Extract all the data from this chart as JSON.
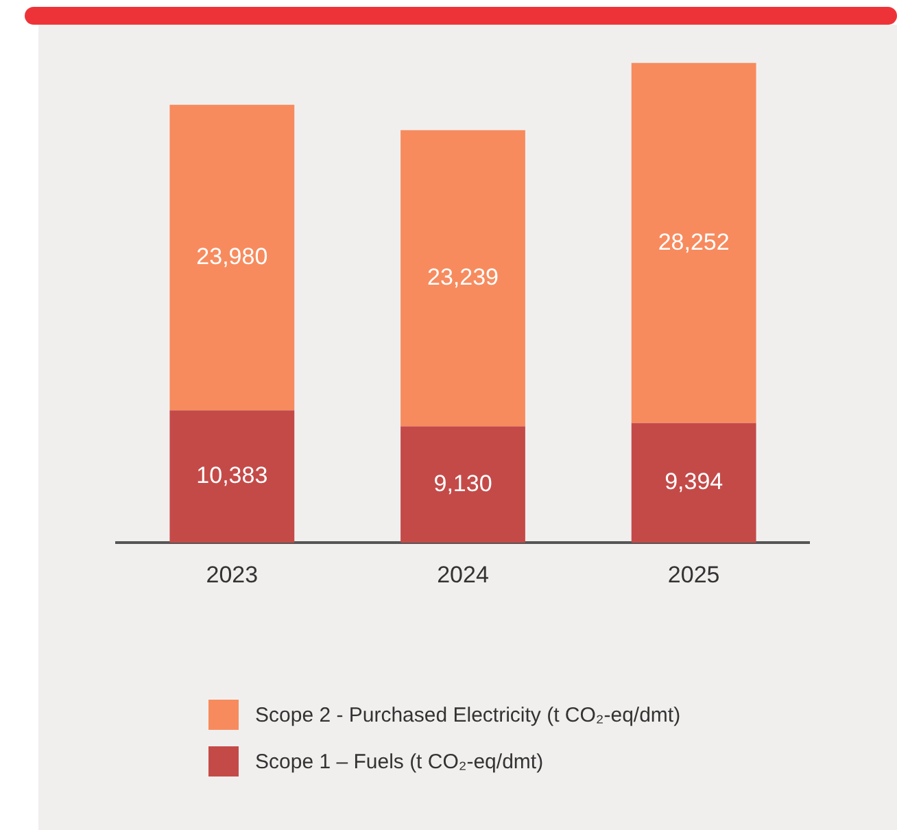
{
  "chart_data": {
    "type": "bar",
    "stacked": true,
    "categories": [
      "2023",
      "2024",
      "2025"
    ],
    "series": [
      {
        "name": "Scope 1 – Fuels (t CO₂-eq/dmt)",
        "color": "#c44a48",
        "values": [
          10383,
          9130,
          9394
        ],
        "value_labels": [
          "10,383",
          "9,130",
          "9,394"
        ]
      },
      {
        "name": "Scope 2 - Purchased Electricity (t CO₂-eq/dmt)",
        "color": "#f78b5e",
        "values": [
          23980,
          23239,
          28252
        ],
        "value_labels": [
          "23,980",
          "23,239",
          "28,252"
        ]
      }
    ],
    "legend": "bottom",
    "grid": false
  }
}
